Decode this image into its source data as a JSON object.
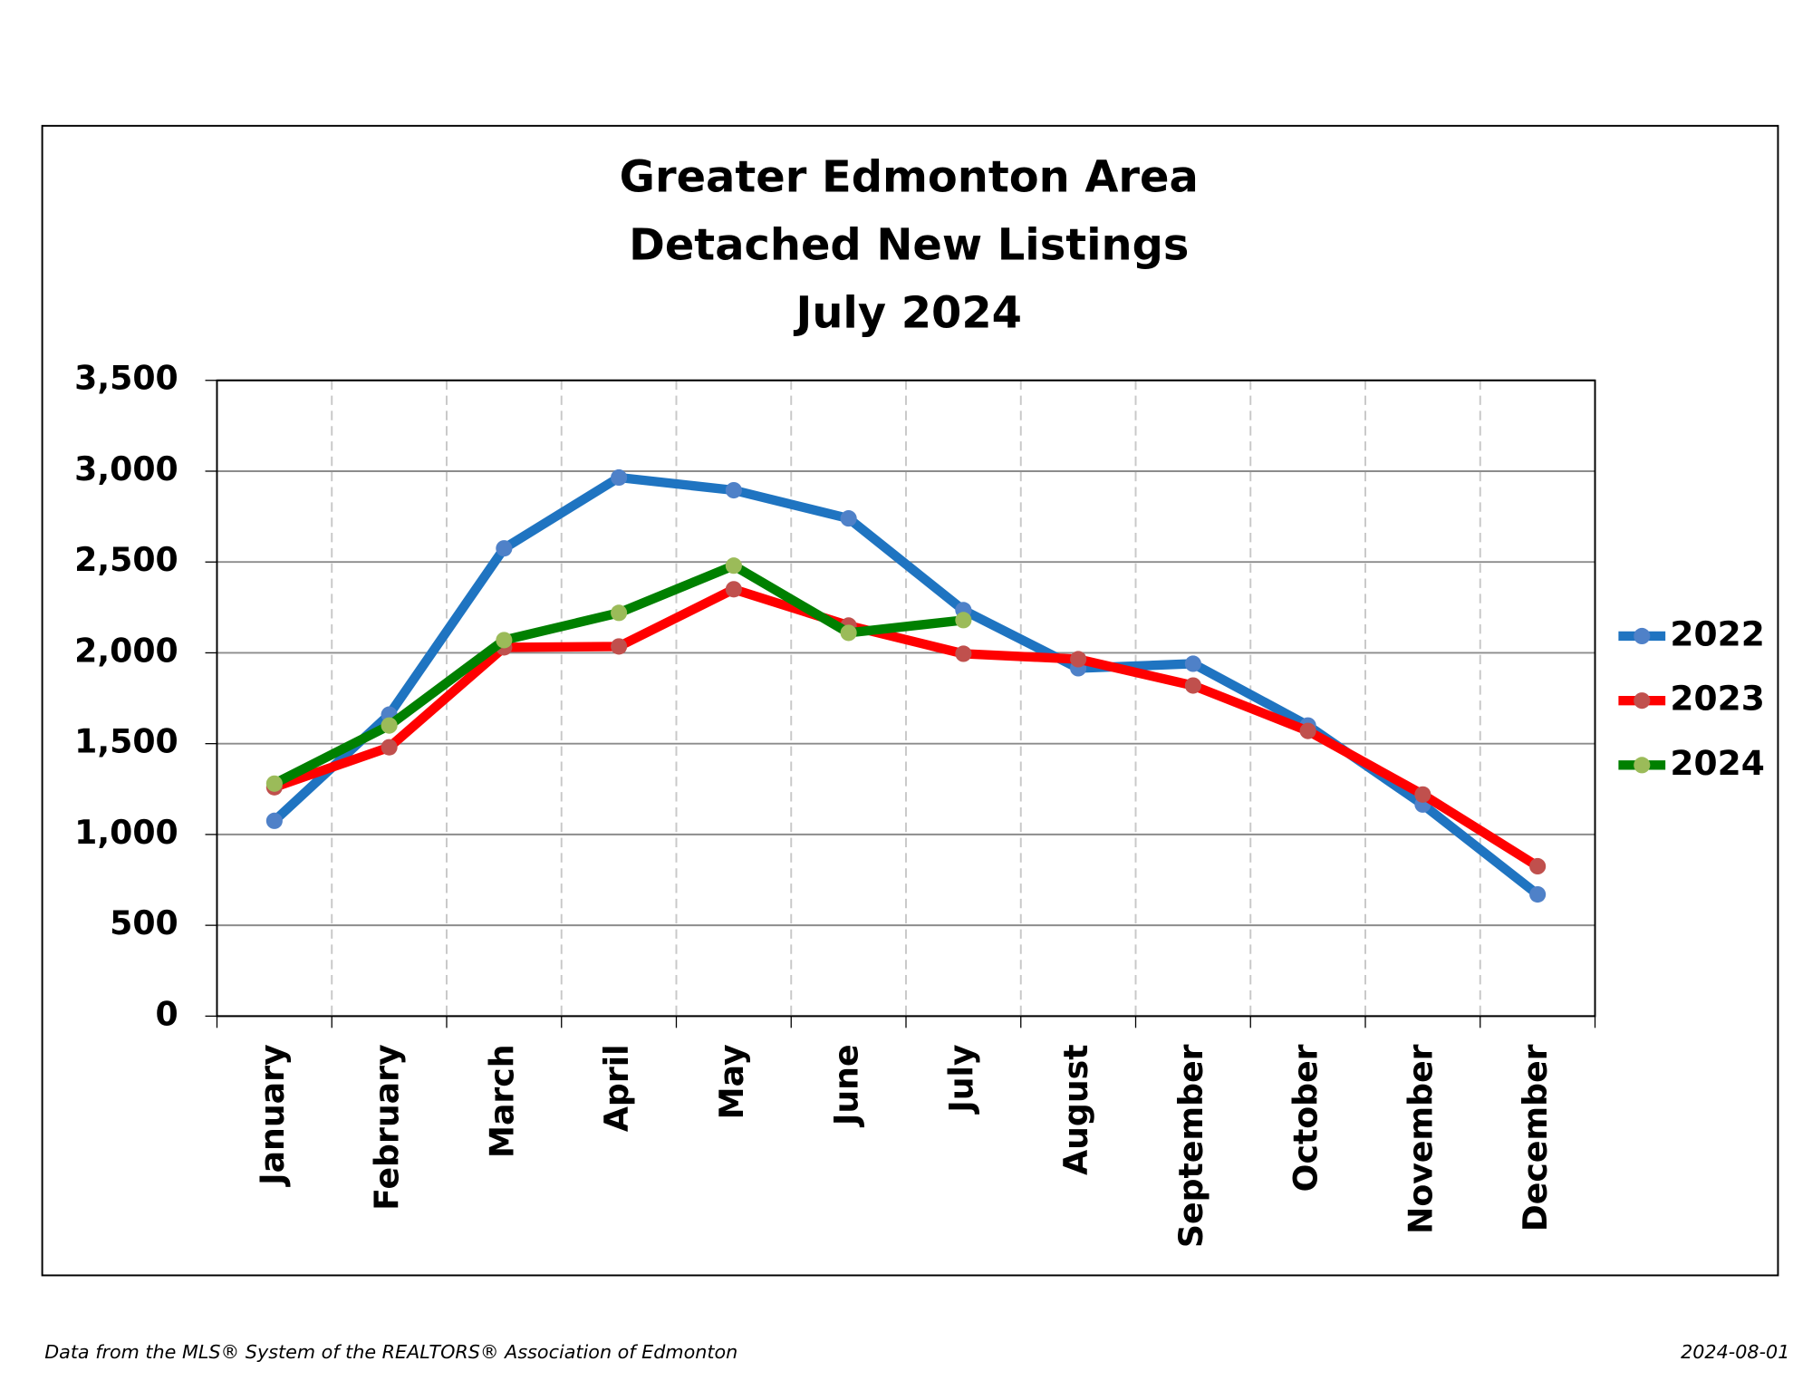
{
  "chart_data": {
    "type": "line",
    "title": [
      "Greater Edmonton Area",
      "Detached New Listings",
      "July 2024"
    ],
    "categories": [
      "January",
      "February",
      "March",
      "April",
      "May",
      "June",
      "July",
      "August",
      "September",
      "October",
      "November",
      "December"
    ],
    "series": [
      {
        "name": "2022",
        "color": "#1f74c1",
        "marker_color": "#4f81c8",
        "values": [
          1075,
          1660,
          2575,
          2965,
          2895,
          2740,
          2235,
          1915,
          1940,
          1600,
          1165,
          670
        ]
      },
      {
        "name": "2023",
        "color": "#ff0000",
        "marker_color": "#c0504d",
        "values": [
          1260,
          1480,
          2030,
          2035,
          2350,
          2150,
          1995,
          1965,
          1820,
          1570,
          1220,
          825
        ]
      },
      {
        "name": "2024",
        "color": "#008000",
        "marker_color": "#9bbb59",
        "values": [
          1280,
          1600,
          2070,
          2220,
          2480,
          2110,
          2180,
          null,
          null,
          null,
          null,
          null
        ]
      }
    ],
    "ylim": [
      0,
      3500
    ],
    "yticks": [
      0,
      500,
      {
        "value": 1000,
        "label": "1,000"
      },
      {
        "value": 1500,
        "label": "1,500"
      },
      {
        "value": 2000,
        "label": "2,000"
      },
      {
        "value": 2500,
        "label": "2,500"
      },
      {
        "value": 3000,
        "label": "3,000"
      },
      {
        "value": 3500,
        "label": "3,500"
      }
    ],
    "grid": true,
    "legend": "right",
    "footer_left": "Data from the MLS® System of the REALTORS® Association of Edmonton",
    "footer_right": "2024-08-01"
  }
}
